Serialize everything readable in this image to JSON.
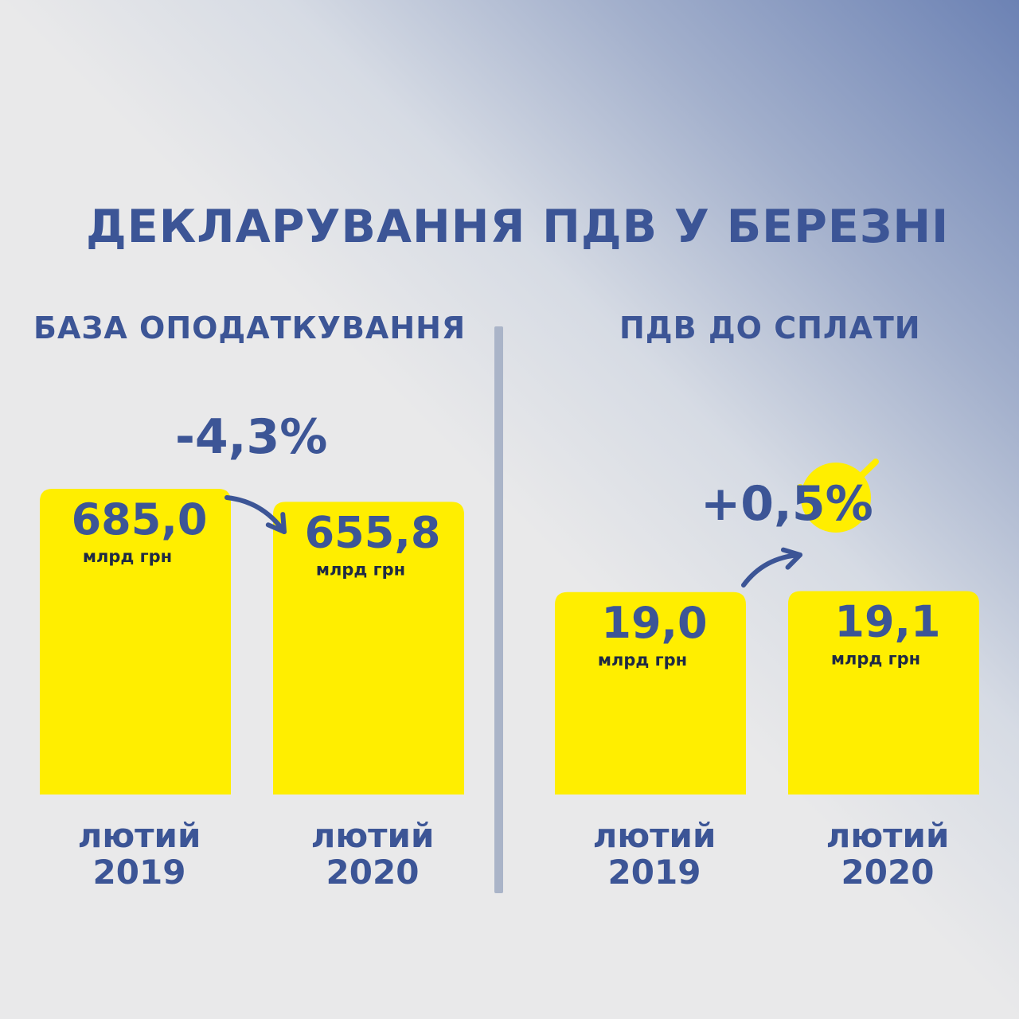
{
  "title": "ДЕКЛАРУВАННЯ ПДВ У БЕРЕЗНІ",
  "colors": {
    "primary": "#3c5596",
    "bar": "#ffee00",
    "divider": "#aab4c8",
    "accent_yellow": "#ffee00"
  },
  "chart_data": [
    {
      "type": "bar",
      "title": "БАЗА ОПОДАТКУВАННЯ",
      "categories": [
        [
          "лютий",
          "2019"
        ],
        [
          "лютий",
          "2020"
        ]
      ],
      "values": [
        685.0,
        655.8
      ],
      "value_labels": [
        "685,0",
        "655,8"
      ],
      "unit": "млрд грн",
      "change": "-4,3%",
      "ylim": [
        0,
        685.0
      ]
    },
    {
      "type": "bar",
      "title": "ПДВ ДО СПЛАТИ",
      "categories": [
        [
          "лютий",
          "2019"
        ],
        [
          "лютий",
          "2020"
        ]
      ],
      "values": [
        19.0,
        19.1
      ],
      "value_labels": [
        "19,0",
        "19,1"
      ],
      "unit": "млрд грн",
      "change": "+0,5%",
      "ylim": [
        0,
        28.7
      ]
    }
  ]
}
